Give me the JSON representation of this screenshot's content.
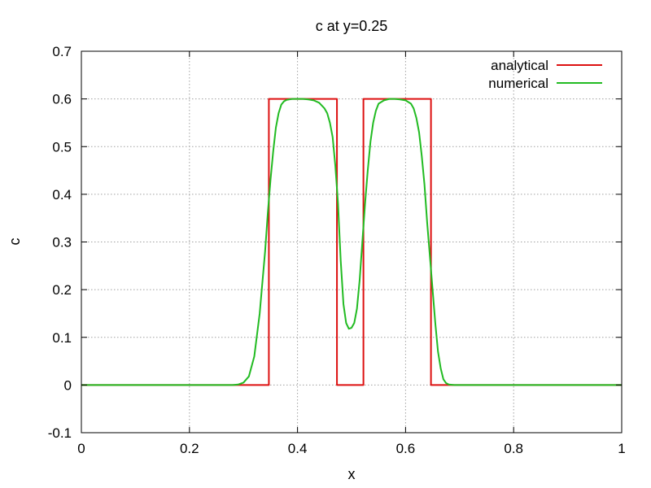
{
  "chart_data": {
    "type": "line",
    "title": "c at y=0.25",
    "xlabel": "x",
    "ylabel": "c",
    "xlim": [
      0,
      1
    ],
    "ylim": [
      -0.1,
      0.7
    ],
    "grid": true,
    "legend_position": "top-right",
    "x_ticks": [
      {
        "value": 0,
        "label": "0"
      },
      {
        "value": 0.2,
        "label": "0.2"
      },
      {
        "value": 0.4,
        "label": "0.4"
      },
      {
        "value": 0.6,
        "label": "0.6"
      },
      {
        "value": 0.8,
        "label": "0.8"
      },
      {
        "value": 1,
        "label": "1"
      }
    ],
    "y_ticks": [
      {
        "value": -0.1,
        "label": "-0.1"
      },
      {
        "value": 0,
        "label": "0"
      },
      {
        "value": 0.1,
        "label": "0.1"
      },
      {
        "value": 0.2,
        "label": "0.2"
      },
      {
        "value": 0.3,
        "label": "0.3"
      },
      {
        "value": 0.4,
        "label": "0.4"
      },
      {
        "value": 0.5,
        "label": "0.5"
      },
      {
        "value": 0.6,
        "label": "0.6"
      },
      {
        "value": 0.7,
        "label": "0.7"
      }
    ],
    "series": [
      {
        "name": "analytical",
        "color": "#dd1111",
        "points": [
          [
            0,
            0
          ],
          [
            0.347,
            0
          ],
          [
            0.347,
            0.6
          ],
          [
            0.473,
            0.6
          ],
          [
            0.473,
            0
          ],
          [
            0.479,
            0
          ],
          [
            0.479,
            0
          ],
          [
            0.522,
            0
          ],
          [
            0.522,
            0.6
          ],
          [
            0.647,
            0.6
          ],
          [
            0.647,
            0
          ],
          [
            1,
            0
          ]
        ]
      },
      {
        "name": "numerical",
        "color": "#22bb22",
        "points": [
          [
            0,
            0
          ],
          [
            0.28,
            0
          ],
          [
            0.29,
            0.001
          ],
          [
            0.3,
            0.005
          ],
          [
            0.31,
            0.018
          ],
          [
            0.32,
            0.06
          ],
          [
            0.33,
            0.15
          ],
          [
            0.34,
            0.28
          ],
          [
            0.345,
            0.36
          ],
          [
            0.35,
            0.43
          ],
          [
            0.355,
            0.49
          ],
          [
            0.36,
            0.54
          ],
          [
            0.365,
            0.57
          ],
          [
            0.37,
            0.588
          ],
          [
            0.375,
            0.595
          ],
          [
            0.38,
            0.598
          ],
          [
            0.39,
            0.6
          ],
          [
            0.4,
            0.6
          ],
          [
            0.41,
            0.6
          ],
          [
            0.42,
            0.599
          ],
          [
            0.43,
            0.597
          ],
          [
            0.44,
            0.592
          ],
          [
            0.45,
            0.58
          ],
          [
            0.455,
            0.57
          ],
          [
            0.46,
            0.55
          ],
          [
            0.465,
            0.52
          ],
          [
            0.47,
            0.46
          ],
          [
            0.475,
            0.38
          ],
          [
            0.48,
            0.26
          ],
          [
            0.485,
            0.17
          ],
          [
            0.49,
            0.13
          ],
          [
            0.495,
            0.118
          ],
          [
            0.5,
            0.12
          ],
          [
            0.505,
            0.13
          ],
          [
            0.51,
            0.16
          ],
          [
            0.515,
            0.22
          ],
          [
            0.52,
            0.3
          ],
          [
            0.525,
            0.38
          ],
          [
            0.53,
            0.45
          ],
          [
            0.535,
            0.51
          ],
          [
            0.54,
            0.55
          ],
          [
            0.545,
            0.575
          ],
          [
            0.55,
            0.59
          ],
          [
            0.56,
            0.597
          ],
          [
            0.57,
            0.6
          ],
          [
            0.58,
            0.6
          ],
          [
            0.59,
            0.599
          ],
          [
            0.6,
            0.597
          ],
          [
            0.61,
            0.59
          ],
          [
            0.615,
            0.58
          ],
          [
            0.62,
            0.56
          ],
          [
            0.625,
            0.53
          ],
          [
            0.63,
            0.48
          ],
          [
            0.635,
            0.42
          ],
          [
            0.64,
            0.34
          ],
          [
            0.645,
            0.27
          ],
          [
            0.65,
            0.2
          ],
          [
            0.655,
            0.13
          ],
          [
            0.66,
            0.07
          ],
          [
            0.665,
            0.035
          ],
          [
            0.67,
            0.012
          ],
          [
            0.675,
            0.004
          ],
          [
            0.68,
            0.001
          ],
          [
            0.69,
            0
          ],
          [
            1,
            0
          ]
        ]
      }
    ]
  }
}
